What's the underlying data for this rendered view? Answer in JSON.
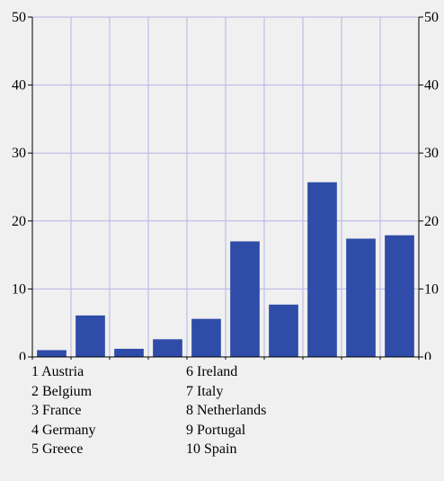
{
  "chart_data": {
    "type": "bar",
    "title": "",
    "xlabel": "",
    "ylabel": "",
    "categories": [
      "1",
      "2",
      "3",
      "4",
      "5",
      "6",
      "7",
      "8",
      "9",
      "10"
    ],
    "values": [
      1.0,
      6.1,
      1.2,
      2.6,
      5.6,
      17.0,
      7.7,
      25.7,
      17.4,
      17.9
    ],
    "ylim": [
      0,
      50
    ],
    "yticks": [
      "0",
      "10",
      "20",
      "30",
      "40",
      "50"
    ],
    "grid": true,
    "right_axis_labels": true,
    "legend": [
      {
        "num": "1",
        "name": "Austria"
      },
      {
        "num": "2",
        "name": "Belgium"
      },
      {
        "num": "3",
        "name": "France"
      },
      {
        "num": "4",
        "name": "Germany"
      },
      {
        "num": "5",
        "name": "Greece"
      },
      {
        "num": "6",
        "name": "Ireland"
      },
      {
        "num": "7",
        "name": "Italy"
      },
      {
        "num": "8",
        "name": "Netherlands"
      },
      {
        "num": "9",
        "name": "Portugal"
      },
      {
        "num": "10",
        "name": "Spain"
      }
    ],
    "colors": {
      "bar": "#2e4ca8",
      "grid": "#b4b4e6",
      "axis": "#000000",
      "background": "#f0f0f0"
    }
  }
}
